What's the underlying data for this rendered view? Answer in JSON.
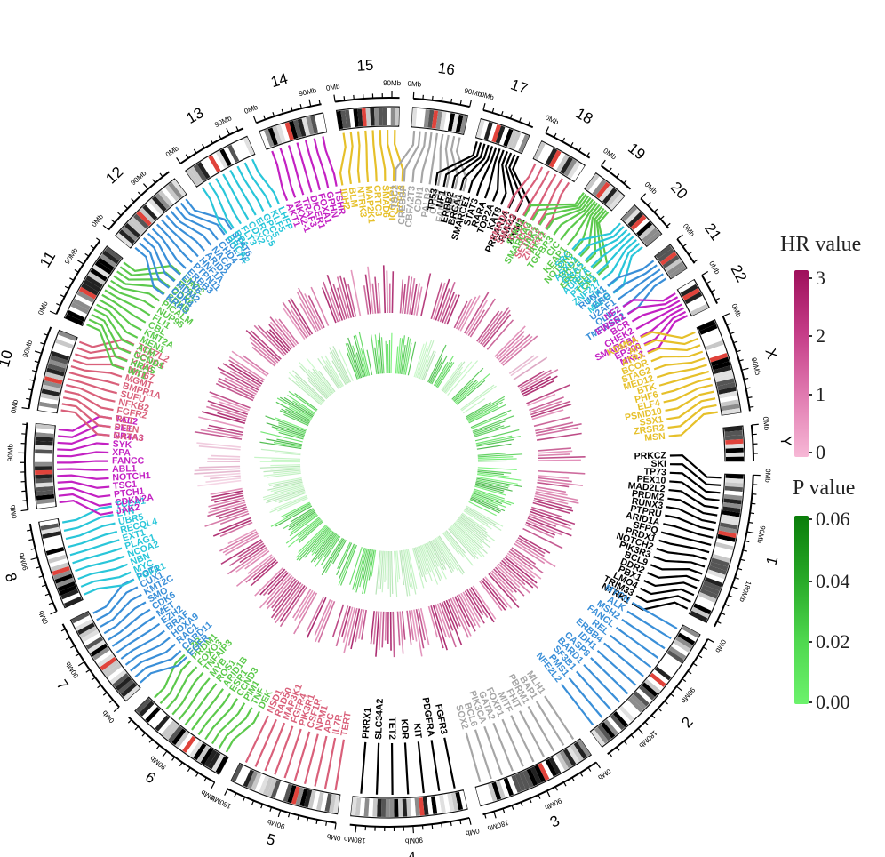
{
  "chart_data": {
    "type": "circos",
    "title": "",
    "chromosomes": [
      {
        "name": "1",
        "size_mb": 249,
        "color": "#000000"
      },
      {
        "name": "2",
        "size_mb": 243,
        "color": "#3a8fd8"
      },
      {
        "name": "3",
        "size_mb": 198,
        "color": "#a6a6a6"
      },
      {
        "name": "4",
        "size_mb": 190,
        "color": "#000000"
      },
      {
        "name": "5",
        "size_mb": 181,
        "color": "#d9607a"
      },
      {
        "name": "6",
        "size_mb": 171,
        "color": "#5cc94c"
      },
      {
        "name": "7",
        "size_mb": 159,
        "color": "#3a8fd8"
      },
      {
        "name": "8",
        "size_mb": 145,
        "color": "#29c6d9"
      },
      {
        "name": "9",
        "size_mb": 138,
        "color": "#c321c3"
      },
      {
        "name": "10",
        "size_mb": 134,
        "color": "#d9607a"
      },
      {
        "name": "11",
        "size_mb": 135,
        "color": "#5cc94c"
      },
      {
        "name": "12",
        "size_mb": 133,
        "color": "#3a8fd8"
      },
      {
        "name": "13",
        "size_mb": 114,
        "color": "#29c6d9"
      },
      {
        "name": "14",
        "size_mb": 107,
        "color": "#c321c3"
      },
      {
        "name": "15",
        "size_mb": 102,
        "color": "#e6c02a"
      },
      {
        "name": "16",
        "size_mb": 90,
        "color": "#a6a6a6"
      },
      {
        "name": "17",
        "size_mb": 83,
        "color": "#000000"
      },
      {
        "name": "18",
        "size_mb": 80,
        "color": "#d9607a"
      },
      {
        "name": "19",
        "size_mb": 59,
        "color": "#5cc94c"
      },
      {
        "name": "20",
        "size_mb": 64,
        "color": "#29c6d9"
      },
      {
        "name": "21",
        "size_mb": 47,
        "color": "#3a8fd8"
      },
      {
        "name": "22",
        "size_mb": 51,
        "color": "#c321c3"
      },
      {
        "name": "X",
        "size_mb": 156,
        "color": "#e6c02a"
      },
      {
        "name": "Y",
        "size_mb": 57,
        "color": "#a6a6a6"
      }
    ],
    "axis_tick_labels": [
      "0Mb",
      "90Mb",
      "180Mb"
    ],
    "gene_labels": [
      {
        "chr": "1",
        "genes": [
          "PRKCZ",
          "SKI",
          "TP73",
          "PEX10",
          "MAD2L2",
          "PRDM2",
          "RUNX3",
          "PTPRU",
          "ARID1A",
          "SFPQ",
          "PRDX1",
          "NOTCH2",
          "PIK3R3",
          "BCL9",
          "DDR2",
          "PBX1",
          "LMO4",
          "TRIM33",
          "NTRK1"
        ]
      },
      {
        "chr": "2",
        "genes": [
          "MYCN",
          "ALK",
          "MSH2",
          "FANCL",
          "REL",
          "ERBB4",
          "IDH1",
          "CASP8",
          "BARD1",
          "SF3B1",
          "PMS1",
          "NFE2L2"
        ]
      },
      {
        "chr": "3",
        "genes": [
          "MLH1",
          "BAP1",
          "PBRM1",
          "FHIT",
          "MITF",
          "FOXP1",
          "GATA2",
          "PIK3CA",
          "BCL6",
          "SOX2"
        ]
      },
      {
        "chr": "4",
        "genes": [
          "FGFR3",
          "PDGFRA",
          "KIT",
          "KDR",
          "TET2",
          "SLC34A2",
          "PRRX1"
        ]
      },
      {
        "chr": "5",
        "genes": [
          "TERT",
          "IL7R",
          "APC",
          "NPM1",
          "CSF1R",
          "PIK3R1",
          "FGFR4",
          "MAP3K1",
          "RAD50",
          "NSD1"
        ]
      },
      {
        "chr": "6",
        "genes": [
          "DEK",
          "TNF",
          "PIM1",
          "CCND3",
          "ESR1",
          "ARID1B",
          "ROS1",
          "MYB",
          "TNFAIP3",
          "FOXO3",
          "PRDM1",
          "EZR"
        ]
      },
      {
        "chr": "7",
        "genes": [
          "EGFR",
          "CARD11",
          "RAC1",
          "HOXA9",
          "BRAF",
          "EZH2",
          "MET",
          "CDK6",
          "SMO",
          "KMT2C",
          "CUX1",
          "POT1"
        ]
      },
      {
        "chr": "8",
        "genes": [
          "FGFR1",
          "MYC",
          "NBN",
          "NCOA2",
          "PLAG1",
          "EXT1",
          "RECQL4",
          "UBR5",
          "LYN",
          "TCEA1"
        ]
      },
      {
        "chr": "9",
        "genes": [
          "JAK2",
          "CDKN2A",
          "PTCH1",
          "TSC1",
          "NOTCH1",
          "ABL1",
          "FANCC",
          "XPA",
          "SYK",
          "NR4A3",
          "SET",
          "TAL2"
        ]
      },
      {
        "chr": "10",
        "genes": [
          "GATA3",
          "PTEN",
          "RET",
          "FGFR2",
          "NFKB2",
          "SUFU",
          "BMPR1A",
          "MGMT",
          "MKI67",
          "KLF6",
          "NCOA4",
          "TCF7L2"
        ]
      },
      {
        "chr": "11",
        "genes": [
          "WT1",
          "HRAS",
          "CCND1",
          "ATM",
          "MEN1",
          "KMT2A",
          "CBL",
          "FLI1",
          "NUP98",
          "PICALM",
          "SDHD",
          "DDX6",
          "ETS1",
          "LMO2"
        ]
      },
      {
        "chr": "12",
        "genes": [
          "KRAS",
          "CDK4",
          "MDM2",
          "ETV6",
          "ERBB3",
          "PTPN11",
          "HNF1A",
          "ARID2",
          "NACA",
          "CHD4",
          "BCL7A",
          "STAT6"
        ]
      },
      {
        "chr": "13",
        "genes": [
          "BRCA2",
          "RB1",
          "FLT3",
          "CDX2",
          "ERCC5",
          "GPC5",
          "KLF5",
          "LHFP"
        ]
      },
      {
        "chr": "14",
        "genes": [
          "AKT1",
          "NKX2-1",
          "TRAF3",
          "DICER1",
          "FOXA1",
          "GPHN",
          "TSHR"
        ]
      },
      {
        "chr": "15",
        "genes": [
          "IDH2",
          "BLM",
          "NTRK3",
          "MAP2K1",
          "CRTC3",
          "SMAD6",
          "IQGAP1",
          "TCF12"
        ]
      },
      {
        "chr": "16",
        "genes": [
          "TSC2",
          "CREBBP",
          "CBFA2T3",
          "CDH1",
          "PALB2",
          "CYLD",
          "FANCA",
          "MAF",
          "CBFB"
        ]
      },
      {
        "chr": "17",
        "genes": [
          "TP53",
          "NF1",
          "ERBB2",
          "BRCA1",
          "SMARCE1",
          "STAT3",
          "RARA",
          "TOP2A",
          "KAT8",
          "PRKAR1A",
          "RNF43",
          "AXIN2"
        ]
      },
      {
        "chr": "18",
        "genes": [
          "SMAD4",
          "SMAD2",
          "BCL2",
          "DCC",
          "SETBP1",
          "ZNF521"
        ]
      },
      {
        "chr": "19",
        "genes": [
          "STK11",
          "SMARCA4",
          "JAK3",
          "AKT2",
          "TGFBR3",
          "CIC",
          "KEAP1",
          "NOTCH3",
          "BRD4",
          "ERCC2",
          "ELL",
          "TCF3"
        ]
      },
      {
        "chr": "20",
        "genes": [
          "SRC",
          "ASXL1",
          "GNAS",
          "AURKA",
          "PTPN1",
          "ZNF217",
          "TOP1",
          "MAFB"
        ]
      },
      {
        "chr": "21",
        "genes": [
          "RUNX1",
          "ERG",
          "U2AF1",
          "OLIG2",
          "TMPRSS2"
        ]
      },
      {
        "chr": "22",
        "genes": [
          "NF2",
          "EWSR1",
          "BCR",
          "CHEK2",
          "SMARCB1",
          "EP300",
          "MKL1"
        ]
      },
      {
        "chr": "X",
        "genes": [
          "KDM6A",
          "AR",
          "ATRX",
          "BCOR",
          "STAG2",
          "MED12",
          "BTK",
          "PHF6",
          "ELF4",
          "PSMD10",
          "SSX1",
          "ZRSR2",
          "MSN"
        ]
      }
    ],
    "hr_values_range": [
      0,
      3
    ],
    "p_values_range": [
      0,
      0.06
    ],
    "legends": [
      {
        "title": "HR value",
        "ticks": [
          "3",
          "2",
          "1",
          "0"
        ],
        "colors": [
          "#9e0f5b",
          "#f7b8d6"
        ]
      },
      {
        "title": "P value",
        "ticks": [
          "0.06",
          "0.04",
          "0.02",
          "0.00"
        ],
        "colors": [
          "#0a7d0a",
          "#6cf26c"
        ]
      }
    ]
  }
}
